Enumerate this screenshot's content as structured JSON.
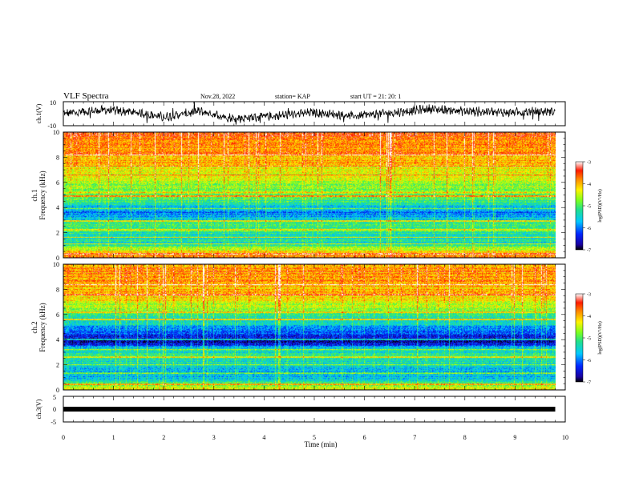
{
  "header": {
    "title": "VLF Spectra",
    "date": "Nov.28, 2022",
    "station": "station= KAP",
    "start": "start  UT =   21: 20: 1"
  },
  "chart_data": [
    {
      "type": "line",
      "name": "ch.1 waveform",
      "ylabel": "ch.1(V)",
      "ylim": [
        -10,
        10
      ],
      "yticks": [
        "10",
        "-10"
      ],
      "xlim": [
        0,
        10
      ],
      "x_end": 9.8,
      "amplitude_envelope": [
        {
          "x": 0,
          "y": 0
        },
        {
          "x": 0.8,
          "y": 3
        },
        {
          "x": 1.5,
          "y": 1
        },
        {
          "x": 2.0,
          "y": -3
        },
        {
          "x": 2.7,
          "y": 2
        },
        {
          "x": 3.4,
          "y": -4
        },
        {
          "x": 4.2,
          "y": -2
        },
        {
          "x": 5.0,
          "y": 1
        },
        {
          "x": 5.8,
          "y": -2
        },
        {
          "x": 6.6,
          "y": 1
        },
        {
          "x": 7.3,
          "y": 4
        },
        {
          "x": 8.0,
          "y": 2
        },
        {
          "x": 8.8,
          "y": 1
        },
        {
          "x": 9.8,
          "y": 2
        }
      ]
    },
    {
      "type": "heatmap",
      "name": "ch.1 spectrogram",
      "ylabel_line1": "ch.1",
      "ylabel_line2": "Frequency (kHz)",
      "ylim": [
        0,
        10
      ],
      "yticks": [
        "0",
        "2",
        "4",
        "6",
        "8",
        "10"
      ],
      "xlim": [
        0,
        10
      ],
      "x_end": 9.8,
      "colorbar": {
        "label": "log(PSD)(V²/Hz)",
        "min": -7,
        "max": -3,
        "ticks": [
          "-3",
          "-4",
          "-5",
          "-6",
          "-7"
        ]
      },
      "band_profile": [
        {
          "f": 0.0,
          "v": -3.6
        },
        {
          "f": 0.6,
          "v": -4.4
        },
        {
          "f": 1.2,
          "v": -5.4
        },
        {
          "f": 2.0,
          "v": -5.2
        },
        {
          "f": 2.6,
          "v": -5.0
        },
        {
          "f": 3.0,
          "v": -5.5
        },
        {
          "f": 3.6,
          "v": -6.0
        },
        {
          "f": 4.2,
          "v": -5.3
        },
        {
          "f": 5.0,
          "v": -4.8
        },
        {
          "f": 6.0,
          "v": -4.6
        },
        {
          "f": 7.0,
          "v": -4.2
        },
        {
          "f": 8.0,
          "v": -3.9
        },
        {
          "f": 9.0,
          "v": -3.7
        },
        {
          "f": 10.0,
          "v": -3.6
        }
      ],
      "tone_lines_khz": [
        0.3,
        1.1,
        1.6,
        2.2,
        2.9,
        3.9,
        4.9,
        5.2,
        6.6,
        7.3,
        8.2
      ]
    },
    {
      "type": "heatmap",
      "name": "ch.2 spectrogram",
      "ylabel_line1": "ch.2",
      "ylabel_line2": "Frequency (kHz)",
      "ylim": [
        0,
        10
      ],
      "yticks": [
        "0",
        "2",
        "4",
        "6",
        "8",
        "10"
      ],
      "xlim": [
        0,
        10
      ],
      "x_end": 9.8,
      "colorbar": {
        "label": "log(PSD)(V²/Hz)",
        "min": -7,
        "max": -3,
        "ticks": [
          "-3",
          "-4",
          "-5",
          "-6",
          "-7"
        ]
      },
      "band_profile": [
        {
          "f": 0.0,
          "v": -4.0
        },
        {
          "f": 0.6,
          "v": -5.2
        },
        {
          "f": 1.2,
          "v": -5.8
        },
        {
          "f": 2.0,
          "v": -5.4
        },
        {
          "f": 2.6,
          "v": -5.2
        },
        {
          "f": 3.2,
          "v": -5.4
        },
        {
          "f": 3.8,
          "v": -6.6
        },
        {
          "f": 4.5,
          "v": -6.2
        },
        {
          "f": 5.2,
          "v": -5.6
        },
        {
          "f": 6.0,
          "v": -5.0
        },
        {
          "f": 7.0,
          "v": -4.3
        },
        {
          "f": 8.0,
          "v": -4.0
        },
        {
          "f": 9.0,
          "v": -3.8
        },
        {
          "f": 10.0,
          "v": -3.8
        }
      ],
      "tone_lines_khz": [
        0.4,
        1.3,
        2.0,
        2.6,
        3.2,
        4.0,
        5.6,
        6.2,
        7.6,
        8.4
      ]
    },
    {
      "type": "line",
      "name": "ch.3 signal",
      "ylabel": "ch.3(V)",
      "ylim": [
        -5,
        5
      ],
      "yticks": [
        "5",
        "0",
        "-5"
      ],
      "xlim": [
        0,
        10
      ],
      "x_end": 9.8,
      "level": 0,
      "xlabel": "Time  (min)",
      "xticks": [
        "0",
        "1",
        "2",
        "3",
        "4",
        "5",
        "6",
        "7",
        "8",
        "9",
        "10"
      ]
    }
  ]
}
